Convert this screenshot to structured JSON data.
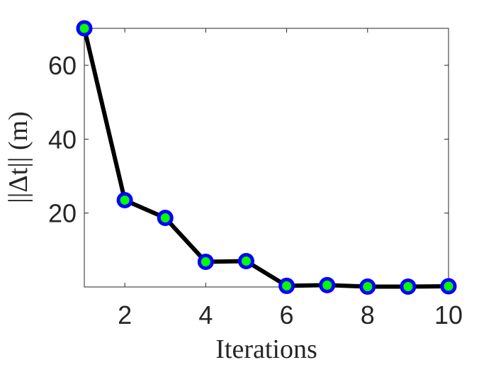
{
  "chart_data": {
    "type": "line",
    "xlabel": "Iterations",
    "ylabel": "||Δt|| (m)",
    "xlim": [
      1,
      10
    ],
    "ylim": [
      0,
      70
    ],
    "xticks": [
      2,
      4,
      6,
      8,
      10
    ],
    "yticks": [
      20,
      40,
      60
    ],
    "grid": false,
    "series": [
      {
        "x": [
          1,
          2,
          3,
          4,
          5,
          6,
          7,
          8,
          9,
          10
        ],
        "values": [
          70,
          23.5,
          18.7,
          6.8,
          7.0,
          0.3,
          0.5,
          0.1,
          0.1,
          0.2
        ],
        "line_color": "#000000",
        "marker_edge_color": "#0000ff",
        "marker_face_color": "#00ff00"
      }
    ]
  }
}
